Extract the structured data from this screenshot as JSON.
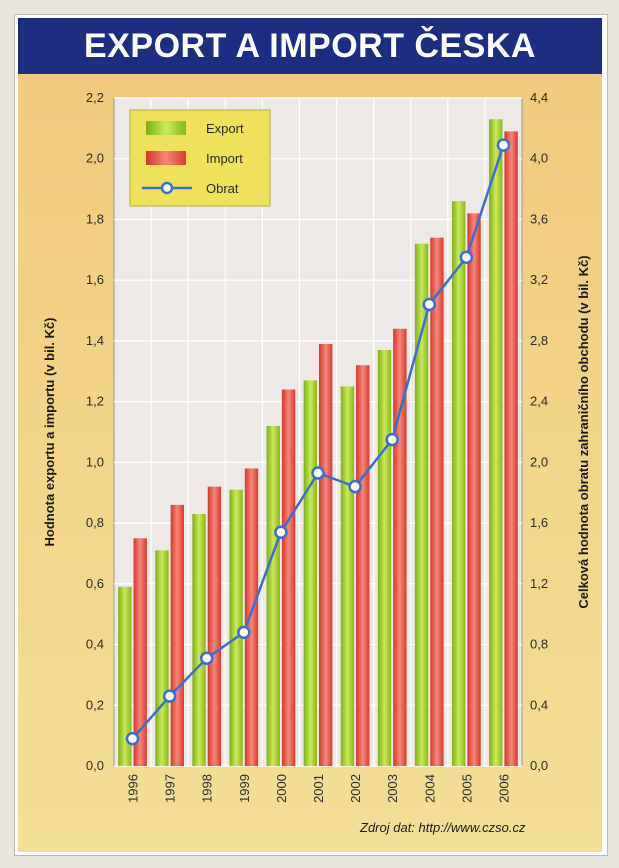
{
  "title": "EXPORT A IMPORT ČESKA",
  "source": "Zdroj dat: http://www.czso.cz",
  "colors": {
    "title_bg": "#1d2d82",
    "export": "#9ccc2a",
    "import": "#e84a3c",
    "obrat": "#3a6fd0",
    "plot_bg": "#ece9e6"
  },
  "chart_data": {
    "type": "bar",
    "categories": [
      "1996",
      "1997",
      "1998",
      "1999",
      "2000",
      "2001",
      "2002",
      "2003",
      "2004",
      "2005",
      "2006"
    ],
    "series": [
      {
        "name": "Export",
        "axis": "left",
        "values": [
          0.59,
          0.71,
          0.83,
          0.91,
          1.12,
          1.27,
          1.25,
          1.37,
          1.72,
          1.86,
          2.13
        ]
      },
      {
        "name": "Import",
        "axis": "left",
        "values": [
          0.75,
          0.86,
          0.92,
          0.98,
          1.24,
          1.39,
          1.32,
          1.44,
          1.74,
          1.82,
          2.09
        ]
      },
      {
        "name": "Obrat",
        "axis": "right",
        "type": "line",
        "values": [
          0.18,
          0.46,
          0.71,
          0.88,
          1.54,
          1.93,
          1.84,
          2.15,
          3.04,
          3.35,
          4.09
        ]
      }
    ],
    "ylabel": "Hodnota exportu a importu (v bil. Kč)",
    "y2label": "Celková hodnota obratu zahraničního obchodu (v bil. Kč)",
    "ylim": [
      0,
      2.2
    ],
    "y2lim": [
      0,
      4.4
    ],
    "yticks": [
      "0,0",
      "0,2",
      "0,4",
      "0,6",
      "0,8",
      "1,0",
      "1,2",
      "1,4",
      "1,6",
      "1,8",
      "2,0",
      "2,2"
    ],
    "y2ticks": [
      "0,0",
      "0,4",
      "0,8",
      "1,2",
      "1,6",
      "2,0",
      "2,4",
      "2,8",
      "3,2",
      "3,6",
      "4,0",
      "4,4"
    ],
    "grid": true,
    "legend_position": "top-left"
  }
}
